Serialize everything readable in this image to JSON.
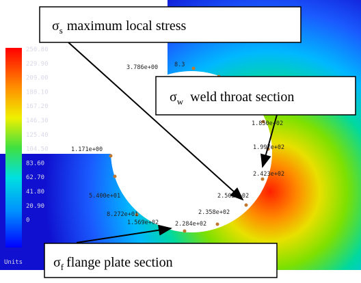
{
  "legend": {
    "labels": [
      "250.80",
      "229.90",
      "209.00",
      "188.10",
      "167.20",
      "146.30",
      "125.40",
      "104.50",
      "83.60",
      "62.70",
      "41.80",
      "20.90",
      "0"
    ],
    "units": "Units"
  },
  "nodes": [
    "8.3",
    "3.786e+00",
    "1.850e+02",
    "1.997e+02",
    "2.423e+02",
    "2.502e+02",
    "2.358e+02",
    "2.284e+02",
    "1.569e+02",
    "8.272e+01",
    "5.400e+01",
    "1.171e+00"
  ],
  "callouts": [
    {
      "symbol": "σ",
      "subscript": "s",
      "text": "maximum local stress"
    },
    {
      "symbol": "σ",
      "subscript": "w",
      "text": "weld throat section"
    },
    {
      "symbol": "σ",
      "subscript": "f",
      "text": "flange plate section"
    }
  ]
}
